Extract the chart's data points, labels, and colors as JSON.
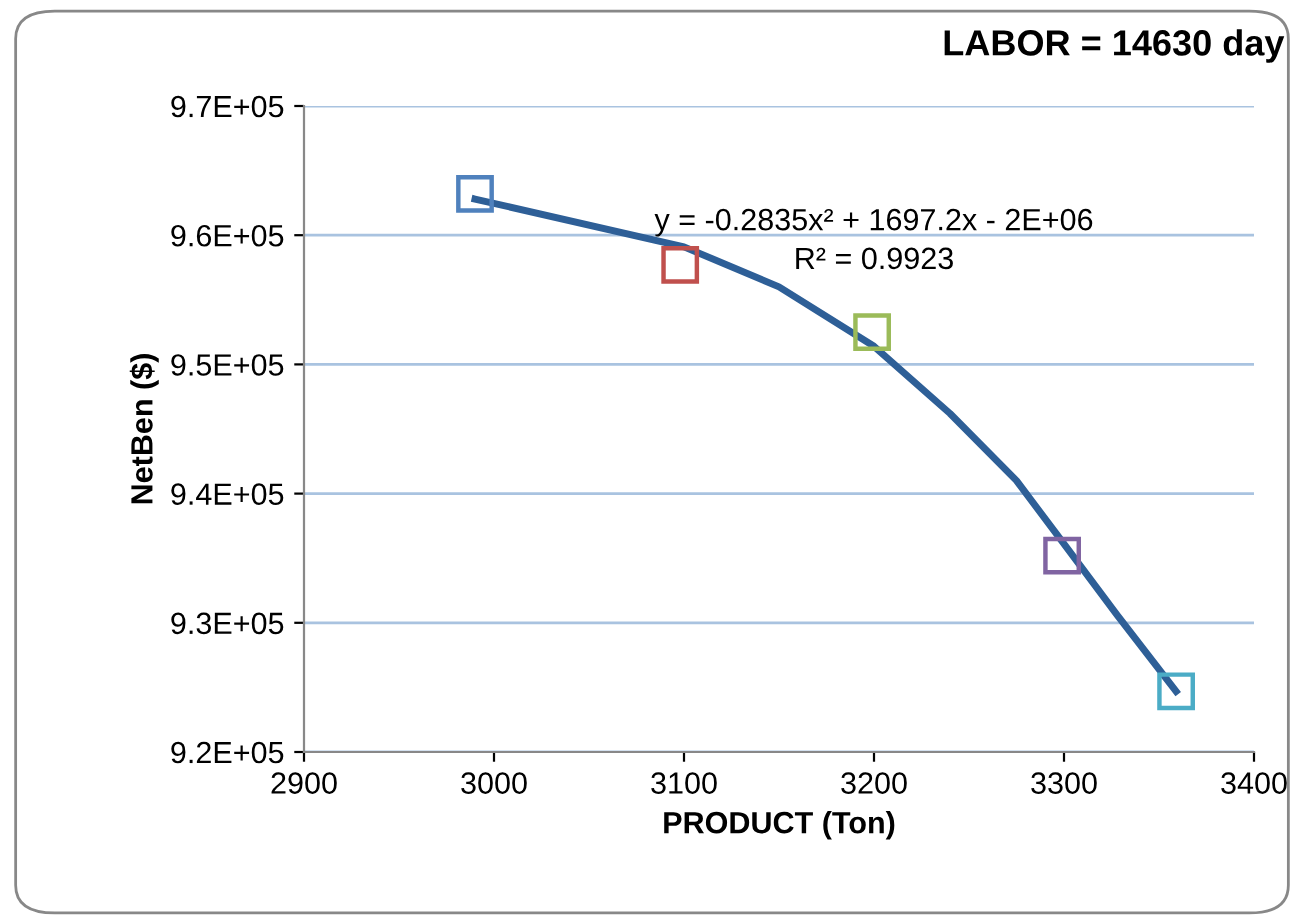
{
  "chart_data": {
    "type": "scatter",
    "title": "LABOR = 14630 day",
    "xlabel": "PRODUCT (Ton)",
    "ylabel": "NetBen ($)",
    "xlim": [
      2900,
      3400
    ],
    "xticks": [
      2900,
      3000,
      3100,
      3200,
      3300,
      3400
    ],
    "ylim": [
      920000,
      970000
    ],
    "yticks": [
      {
        "value": 920000,
        "label": "9.2E+05"
      },
      {
        "value": 930000,
        "label": "9.3E+05"
      },
      {
        "value": 940000,
        "label": "9.4E+05"
      },
      {
        "value": 950000,
        "label": "9.5E+05"
      },
      {
        "value": 960000,
        "label": "9.6E+05"
      },
      {
        "value": 970000,
        "label": "9.7E+05"
      }
    ],
    "grid": "y",
    "legend": false,
    "series": [
      {
        "marker": "square",
        "x": [
          2990,
          3098,
          3199,
          3299,
          3359
        ],
        "values": [
          963200,
          957700,
          952500,
          935200,
          924700
        ],
        "colors": [
          "#4f81bd",
          "#c0504d",
          "#9bbb59",
          "#8064a2",
          "#4bacc6"
        ]
      },
      {
        "type": "line",
        "color": "#2e5f97",
        "x": [
          2990,
          3100,
          3150,
          3200,
          3240,
          3275,
          3299,
          3328,
          3359
        ],
        "values": [
          962800,
          959100,
          956000,
          951400,
          946200,
          941000,
          936300,
          930600,
          924700
        ]
      }
    ],
    "annotations": [
      "y = -0.2835x² + 1697.2x - 2E+06",
      "R² = 0.9923"
    ]
  }
}
